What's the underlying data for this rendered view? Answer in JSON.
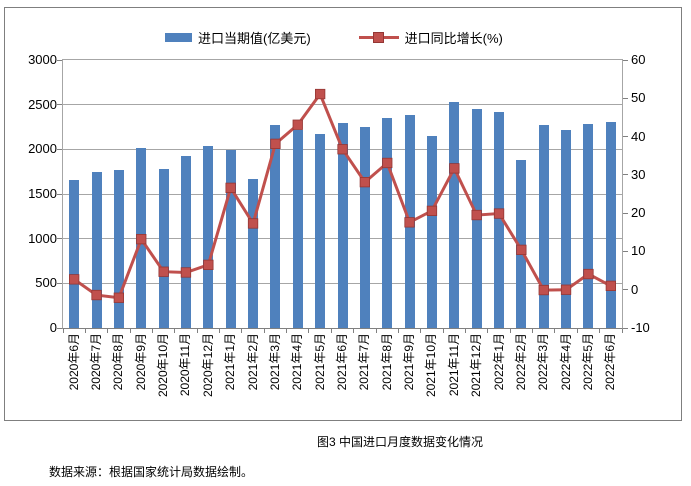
{
  "figure": {
    "caption": "图3 中国进口月度数据变化情况",
    "source_note": "数据来源：根据国家统计局数据绘制。"
  },
  "chart_data": {
    "type": "combo-bar-line",
    "title": "图3 中国进口月度数据变化情况",
    "categories": [
      "2020年6月",
      "2020年7月",
      "2020年8月",
      "2020年9月",
      "2020年10月",
      "2020年11月",
      "2020年12月",
      "2021年1月",
      "2021年2月",
      "2021年3月",
      "2021年4月",
      "2021年5月",
      "2021年6月",
      "2021年7月",
      "2021年8月",
      "2021年9月",
      "2021年10月",
      "2021年11月",
      "2021年12月",
      "2022年1月",
      "2022年2月",
      "2022年3月",
      "2022年4月",
      "2022年5月",
      "2022年6月"
    ],
    "series": [
      {
        "name": "进口当期值(亿美元)",
        "type": "bar",
        "axis": "left",
        "color": "#4F81BD",
        "values": [
          1660,
          1750,
          1770,
          2015,
          1785,
          1925,
          2040,
          1990,
          1665,
          2270,
          2215,
          2170,
          2300,
          2255,
          2355,
          2380,
          2150,
          2525,
          2450,
          2420,
          1880,
          2270,
          2215,
          2280,
          2310
        ]
      },
      {
        "name": "进口同比增长(%)",
        "type": "line",
        "axis": "right",
        "color": "#C0504D",
        "values": [
          2.7,
          -1.4,
          -2.1,
          13.2,
          4.7,
          4.5,
          6.5,
          26.6,
          17.3,
          38.1,
          43.1,
          51.1,
          36.7,
          28.1,
          33.1,
          17.6,
          20.6,
          31.7,
          19.5,
          19.9,
          10.4,
          -0.1,
          0.0,
          4.1,
          1.0
        ]
      }
    ],
    "left_axis": {
      "min": 0,
      "max": 3000,
      "step": 500,
      "ticks": [
        3000,
        2500,
        2000,
        1500,
        1000,
        500,
        0
      ]
    },
    "right_axis": {
      "min": -10,
      "max": 60,
      "step": 10,
      "ticks": [
        60,
        50,
        40,
        30,
        20,
        10,
        0,
        -10
      ]
    },
    "grid": "horizontal",
    "legend_position": "top",
    "colors": {
      "bar": "#4F81BD",
      "line": "#C0504D",
      "marker_edge": "#943634",
      "grid": "#A6A6A6",
      "axis": "#808080",
      "box_border": "#7F7F7F",
      "text": "#000000"
    }
  }
}
